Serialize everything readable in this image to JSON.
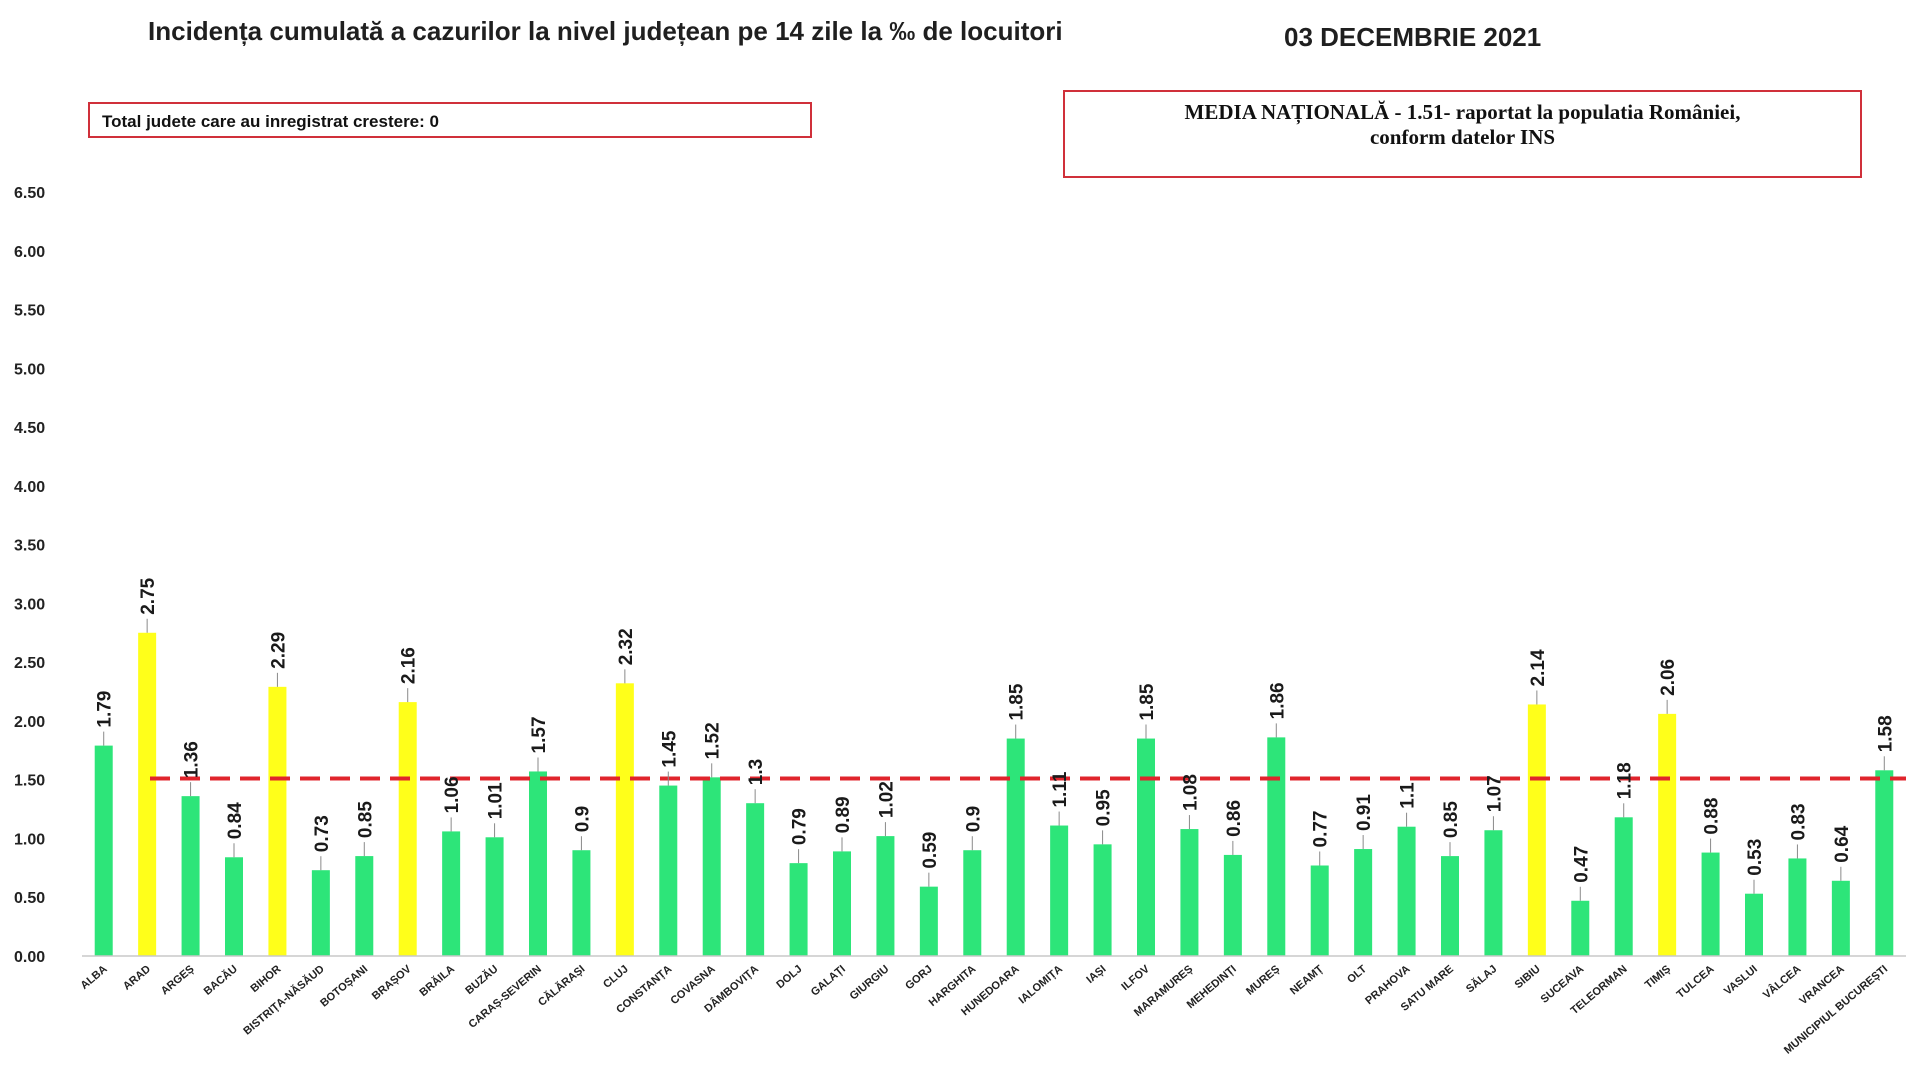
{
  "header": {
    "title": "Incidența cumulată a cazurilor la nivel județean pe 14 zile la ‰ de locuitori",
    "date": "03 DECEMBRIE 2021"
  },
  "notes": {
    "growth_note": "Total judete care au inregistrat crestere: 0",
    "national_line1": "MEDIA NAȚIONALĂ - 1.51-  raportat la populatia României,",
    "national_line2": "conform datelor INS"
  },
  "colors": {
    "green": "#2de579",
    "yellow": "#ffff1a",
    "reference": "#e0242c"
  },
  "chart_data": {
    "type": "bar",
    "title": "Incidența cumulată a cazurilor la nivel județean pe 14 zile la ‰ de locuitori",
    "ylim": [
      0,
      6.5
    ],
    "yticks": [
      "0.00",
      "0.50",
      "1.00",
      "1.50",
      "2.00",
      "2.50",
      "3.00",
      "3.50",
      "4.00",
      "4.50",
      "5.00",
      "5.50",
      "6.00",
      "6.50"
    ],
    "reference_line": 1.51,
    "grid": false,
    "categories": [
      "ALBA",
      "ARAD",
      "ARGEȘ",
      "BACĂU",
      "BIHOR",
      "BISTRIȚA-NĂSĂUD",
      "BOTOȘANI",
      "BRAȘOV",
      "BRĂILA",
      "BUZĂU",
      "CARAȘ-SEVERIN",
      "CĂLĂRAȘI",
      "CLUJ",
      "CONSTANȚA",
      "COVASNA",
      "DÂMBOVIȚA",
      "DOLJ",
      "GALAȚI",
      "GIURGIU",
      "GORJ",
      "HARGHITA",
      "HUNEDOARA",
      "IALOMIȚA",
      "IAȘI",
      "ILFOV",
      "MARAMUREȘ",
      "MEHEDINȚI",
      "MUREȘ",
      "NEAMȚ",
      "OLT",
      "PRAHOVA",
      "SATU MARE",
      "SĂLAJ",
      "SIBIU",
      "SUCEAVA",
      "TELEORMAN",
      "TIMIȘ",
      "TULCEA",
      "VASLUI",
      "VÂLCEA",
      "VRANCEA",
      "MUNICIPIUL BUCUREȘTI"
    ],
    "values": [
      1.79,
      2.75,
      1.36,
      0.84,
      2.29,
      0.73,
      0.85,
      2.16,
      1.06,
      1.01,
      1.57,
      0.9,
      2.32,
      1.45,
      1.52,
      1.3,
      0.79,
      0.89,
      1.02,
      0.59,
      0.9,
      1.85,
      1.11,
      0.95,
      1.85,
      1.08,
      0.86,
      1.86,
      0.77,
      0.91,
      1.1,
      0.85,
      1.07,
      2.14,
      0.47,
      1.18,
      2.06,
      0.88,
      0.53,
      0.83,
      0.64,
      1.58
    ],
    "data_labels": [
      "1.79",
      "2.75",
      "1.36",
      "0.84",
      "2.29",
      "0.73",
      "0.85",
      "2.16",
      "1.06",
      "1.01",
      "1.57",
      "0.9",
      "2.32",
      "1.45",
      "1.52",
      "1.3",
      "0.79",
      "0.89",
      "1.02",
      "0.59",
      "0.9",
      "1.85",
      "1.11",
      "0.95",
      "1.85",
      "1.08",
      "0.86",
      "1.86",
      "0.77",
      "0.91",
      "1.1",
      "0.85",
      "1.07",
      "2.14",
      "0.47",
      "1.18",
      "2.06",
      "0.88",
      "0.53",
      "0.83",
      "0.64",
      "1.58"
    ],
    "bar_colors": [
      "green",
      "yellow",
      "green",
      "green",
      "yellow",
      "green",
      "green",
      "yellow",
      "green",
      "green",
      "green",
      "green",
      "yellow",
      "green",
      "green",
      "green",
      "green",
      "green",
      "green",
      "green",
      "green",
      "green",
      "green",
      "green",
      "green",
      "green",
      "green",
      "green",
      "green",
      "green",
      "green",
      "green",
      "green",
      "yellow",
      "green",
      "green",
      "yellow",
      "green",
      "green",
      "green",
      "green",
      "green"
    ]
  }
}
